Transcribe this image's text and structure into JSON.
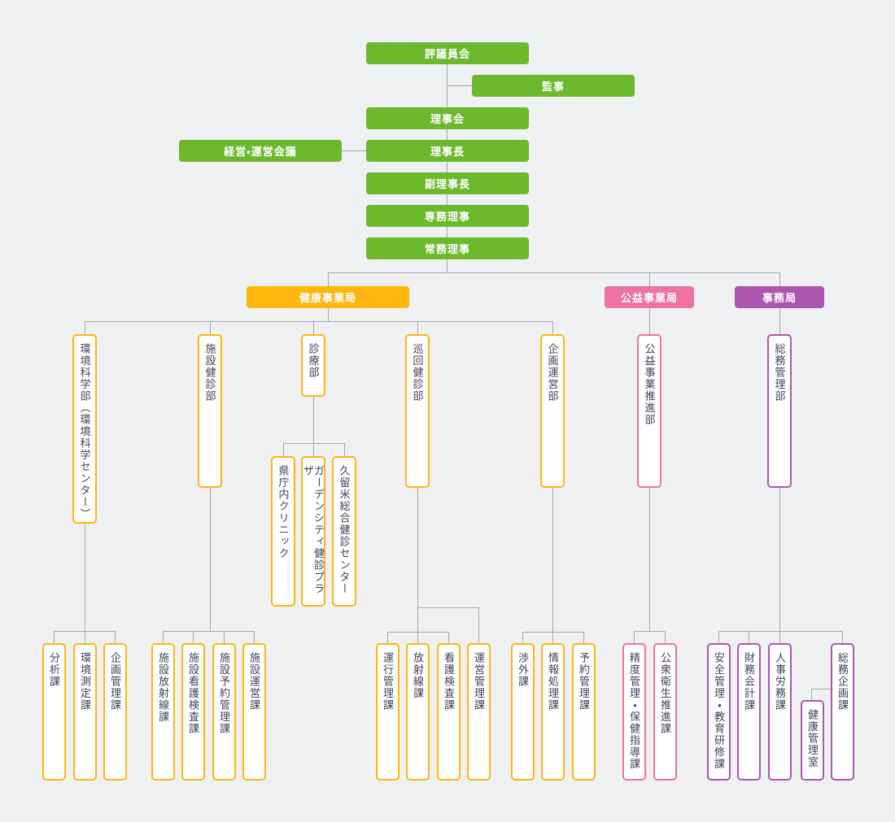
{
  "colors": {
    "green": "#6cb92e",
    "orange": "#ffb60d",
    "pink": "#ee72a3",
    "purple": "#ac56ae",
    "text_dark": "#3d435c",
    "line": "#a6a8ab",
    "background": "#f0f1f3",
    "box_bg": "#ffffff"
  },
  "nodes": {
    "hyogiinkai": "評議員会",
    "kanji": "監事",
    "rijikai": "理事会",
    "keiei_kaigi": "経営・運営会議",
    "rijicho": "理事長",
    "fuku_rijicho": "副理事長",
    "senmu_riji": "専務理事",
    "jomu_riji": "常務理事",
    "kenko_jigyokyoku": "健康事業局",
    "koeki_jigyokyoku": "公益事業局",
    "jimukyoku": "事務局",
    "kankyo_kagakubu": "環境科学部（環境科学センター）",
    "shisetsu_kenshinbu": "施設健診部",
    "shinryobu": "診療部",
    "junkai_kenshinbu": "巡回健診部",
    "kikaku_uneibu": "企画運営部",
    "koeki_suishinbu": "公益事業推進部",
    "somu_kanribu": "総務管理部",
    "kencho_clinic": "県庁内クリニック",
    "garden_city": "ガーデンシティ健診プラザ",
    "kurume_center": "久留米総合健診センター",
    "bunsekika": "分析課",
    "kankyo_sokuteika": "環境測定課",
    "kikaku_kanrika": "企画管理課",
    "shisetsu_hoshasenka": "施設放射線課",
    "shisetsu_kangoka": "施設看護検査課",
    "shisetsu_yoyakuka": "施設予約管理課",
    "shisetsu_uneika": "施設運営課",
    "unko_kanrika": "運行管理課",
    "hoshasenka": "放射線課",
    "kango_kensaka": "看護検査課",
    "unei_kanrika": "運営管理課",
    "shogaika": "渉外課",
    "joho_shorika": "情報処理課",
    "yoyaku_kanrika": "予約管理課",
    "seido_kanrika": "精度管理・保健指導課",
    "koshu_eiseika": "公衆衛生推進課",
    "anzen_kanrika": "安全管理・教育研修課",
    "zaimu_kaikeika": "財務会計課",
    "jinji_romuka": "人事労務課",
    "kenko_kanrishitsu": "健康管理室",
    "somu_kikakuka": "総務企画課"
  }
}
